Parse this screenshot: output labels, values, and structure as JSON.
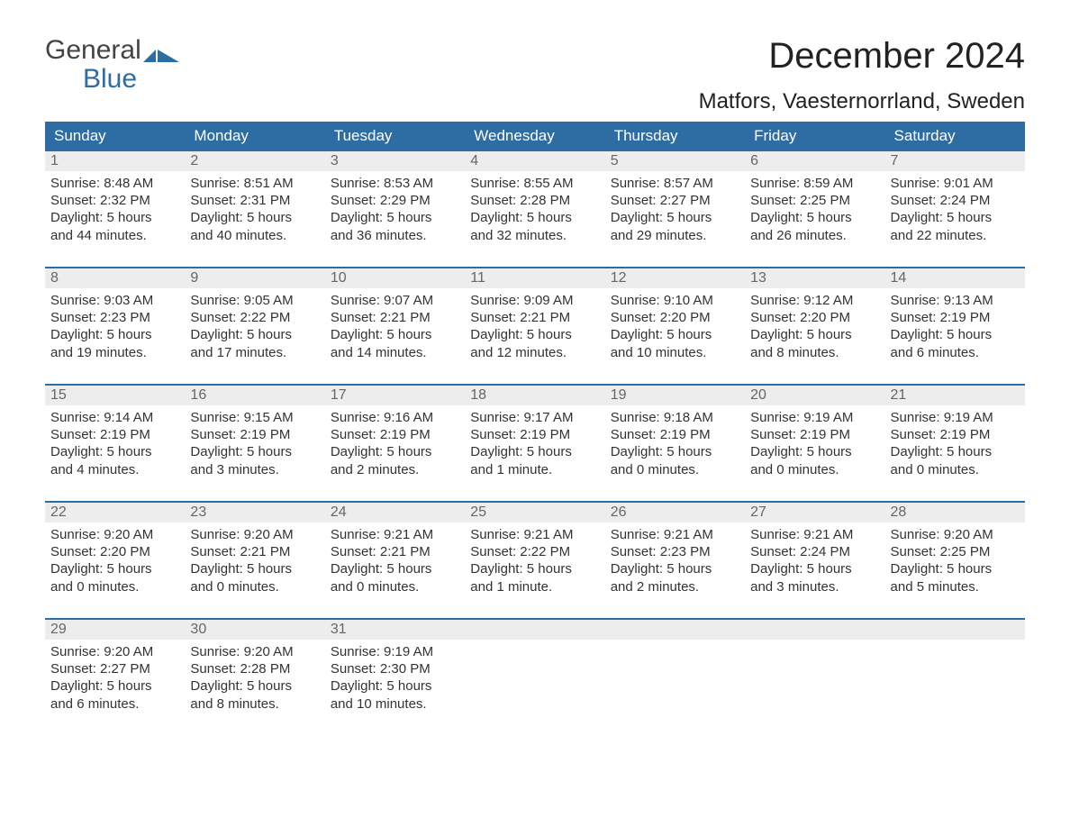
{
  "brand": {
    "line1": "General",
    "line2": "Blue",
    "flag_color": "#2e6ca4",
    "text_general_color": "#444444",
    "text_blue_color": "#2e6ca4"
  },
  "title": "December 2024",
  "location": "Matfors, Vaesternorrland, Sweden",
  "colors": {
    "header_bg": "#2e6ca4",
    "header_text": "#ffffff",
    "week_border": "#2e6ca4",
    "daynum_bg": "#ededed",
    "daynum_text": "#666666",
    "body_text": "#333333",
    "background": "#ffffff"
  },
  "typography": {
    "title_fontsize": 40,
    "location_fontsize": 24,
    "weekday_fontsize": 17,
    "daynum_fontsize": 16,
    "cell_fontsize": 15,
    "logo_fontsize": 30
  },
  "weekdays": [
    "Sunday",
    "Monday",
    "Tuesday",
    "Wednesday",
    "Thursday",
    "Friday",
    "Saturday"
  ],
  "weeks": [
    [
      {
        "day": "1",
        "sunrise": "Sunrise: 8:48 AM",
        "sunset": "Sunset: 2:32 PM",
        "daylight1": "Daylight: 5 hours",
        "daylight2": "and 44 minutes."
      },
      {
        "day": "2",
        "sunrise": "Sunrise: 8:51 AM",
        "sunset": "Sunset: 2:31 PM",
        "daylight1": "Daylight: 5 hours",
        "daylight2": "and 40 minutes."
      },
      {
        "day": "3",
        "sunrise": "Sunrise: 8:53 AM",
        "sunset": "Sunset: 2:29 PM",
        "daylight1": "Daylight: 5 hours",
        "daylight2": "and 36 minutes."
      },
      {
        "day": "4",
        "sunrise": "Sunrise: 8:55 AM",
        "sunset": "Sunset: 2:28 PM",
        "daylight1": "Daylight: 5 hours",
        "daylight2": "and 32 minutes."
      },
      {
        "day": "5",
        "sunrise": "Sunrise: 8:57 AM",
        "sunset": "Sunset: 2:27 PM",
        "daylight1": "Daylight: 5 hours",
        "daylight2": "and 29 minutes."
      },
      {
        "day": "6",
        "sunrise": "Sunrise: 8:59 AM",
        "sunset": "Sunset: 2:25 PM",
        "daylight1": "Daylight: 5 hours",
        "daylight2": "and 26 minutes."
      },
      {
        "day": "7",
        "sunrise": "Sunrise: 9:01 AM",
        "sunset": "Sunset: 2:24 PM",
        "daylight1": "Daylight: 5 hours",
        "daylight2": "and 22 minutes."
      }
    ],
    [
      {
        "day": "8",
        "sunrise": "Sunrise: 9:03 AM",
        "sunset": "Sunset: 2:23 PM",
        "daylight1": "Daylight: 5 hours",
        "daylight2": "and 19 minutes."
      },
      {
        "day": "9",
        "sunrise": "Sunrise: 9:05 AM",
        "sunset": "Sunset: 2:22 PM",
        "daylight1": "Daylight: 5 hours",
        "daylight2": "and 17 minutes."
      },
      {
        "day": "10",
        "sunrise": "Sunrise: 9:07 AM",
        "sunset": "Sunset: 2:21 PM",
        "daylight1": "Daylight: 5 hours",
        "daylight2": "and 14 minutes."
      },
      {
        "day": "11",
        "sunrise": "Sunrise: 9:09 AM",
        "sunset": "Sunset: 2:21 PM",
        "daylight1": "Daylight: 5 hours",
        "daylight2": "and 12 minutes."
      },
      {
        "day": "12",
        "sunrise": "Sunrise: 9:10 AM",
        "sunset": "Sunset: 2:20 PM",
        "daylight1": "Daylight: 5 hours",
        "daylight2": "and 10 minutes."
      },
      {
        "day": "13",
        "sunrise": "Sunrise: 9:12 AM",
        "sunset": "Sunset: 2:20 PM",
        "daylight1": "Daylight: 5 hours",
        "daylight2": "and 8 minutes."
      },
      {
        "day": "14",
        "sunrise": "Sunrise: 9:13 AM",
        "sunset": "Sunset: 2:19 PM",
        "daylight1": "Daylight: 5 hours",
        "daylight2": "and 6 minutes."
      }
    ],
    [
      {
        "day": "15",
        "sunrise": "Sunrise: 9:14 AM",
        "sunset": "Sunset: 2:19 PM",
        "daylight1": "Daylight: 5 hours",
        "daylight2": "and 4 minutes."
      },
      {
        "day": "16",
        "sunrise": "Sunrise: 9:15 AM",
        "sunset": "Sunset: 2:19 PM",
        "daylight1": "Daylight: 5 hours",
        "daylight2": "and 3 minutes."
      },
      {
        "day": "17",
        "sunrise": "Sunrise: 9:16 AM",
        "sunset": "Sunset: 2:19 PM",
        "daylight1": "Daylight: 5 hours",
        "daylight2": "and 2 minutes."
      },
      {
        "day": "18",
        "sunrise": "Sunrise: 9:17 AM",
        "sunset": "Sunset: 2:19 PM",
        "daylight1": "Daylight: 5 hours",
        "daylight2": "and 1 minute."
      },
      {
        "day": "19",
        "sunrise": "Sunrise: 9:18 AM",
        "sunset": "Sunset: 2:19 PM",
        "daylight1": "Daylight: 5 hours",
        "daylight2": "and 0 minutes."
      },
      {
        "day": "20",
        "sunrise": "Sunrise: 9:19 AM",
        "sunset": "Sunset: 2:19 PM",
        "daylight1": "Daylight: 5 hours",
        "daylight2": "and 0 minutes."
      },
      {
        "day": "21",
        "sunrise": "Sunrise: 9:19 AM",
        "sunset": "Sunset: 2:19 PM",
        "daylight1": "Daylight: 5 hours",
        "daylight2": "and 0 minutes."
      }
    ],
    [
      {
        "day": "22",
        "sunrise": "Sunrise: 9:20 AM",
        "sunset": "Sunset: 2:20 PM",
        "daylight1": "Daylight: 5 hours",
        "daylight2": "and 0 minutes."
      },
      {
        "day": "23",
        "sunrise": "Sunrise: 9:20 AM",
        "sunset": "Sunset: 2:21 PM",
        "daylight1": "Daylight: 5 hours",
        "daylight2": "and 0 minutes."
      },
      {
        "day": "24",
        "sunrise": "Sunrise: 9:21 AM",
        "sunset": "Sunset: 2:21 PM",
        "daylight1": "Daylight: 5 hours",
        "daylight2": "and 0 minutes."
      },
      {
        "day": "25",
        "sunrise": "Sunrise: 9:21 AM",
        "sunset": "Sunset: 2:22 PM",
        "daylight1": "Daylight: 5 hours",
        "daylight2": "and 1 minute."
      },
      {
        "day": "26",
        "sunrise": "Sunrise: 9:21 AM",
        "sunset": "Sunset: 2:23 PM",
        "daylight1": "Daylight: 5 hours",
        "daylight2": "and 2 minutes."
      },
      {
        "day": "27",
        "sunrise": "Sunrise: 9:21 AM",
        "sunset": "Sunset: 2:24 PM",
        "daylight1": "Daylight: 5 hours",
        "daylight2": "and 3 minutes."
      },
      {
        "day": "28",
        "sunrise": "Sunrise: 9:20 AM",
        "sunset": "Sunset: 2:25 PM",
        "daylight1": "Daylight: 5 hours",
        "daylight2": "and 5 minutes."
      }
    ],
    [
      {
        "day": "29",
        "sunrise": "Sunrise: 9:20 AM",
        "sunset": "Sunset: 2:27 PM",
        "daylight1": "Daylight: 5 hours",
        "daylight2": "and 6 minutes."
      },
      {
        "day": "30",
        "sunrise": "Sunrise: 9:20 AM",
        "sunset": "Sunset: 2:28 PM",
        "daylight1": "Daylight: 5 hours",
        "daylight2": "and 8 minutes."
      },
      {
        "day": "31",
        "sunrise": "Sunrise: 9:19 AM",
        "sunset": "Sunset: 2:30 PM",
        "daylight1": "Daylight: 5 hours",
        "daylight2": "and 10 minutes."
      },
      {
        "empty": true
      },
      {
        "empty": true
      },
      {
        "empty": true
      },
      {
        "empty": true
      }
    ]
  ]
}
